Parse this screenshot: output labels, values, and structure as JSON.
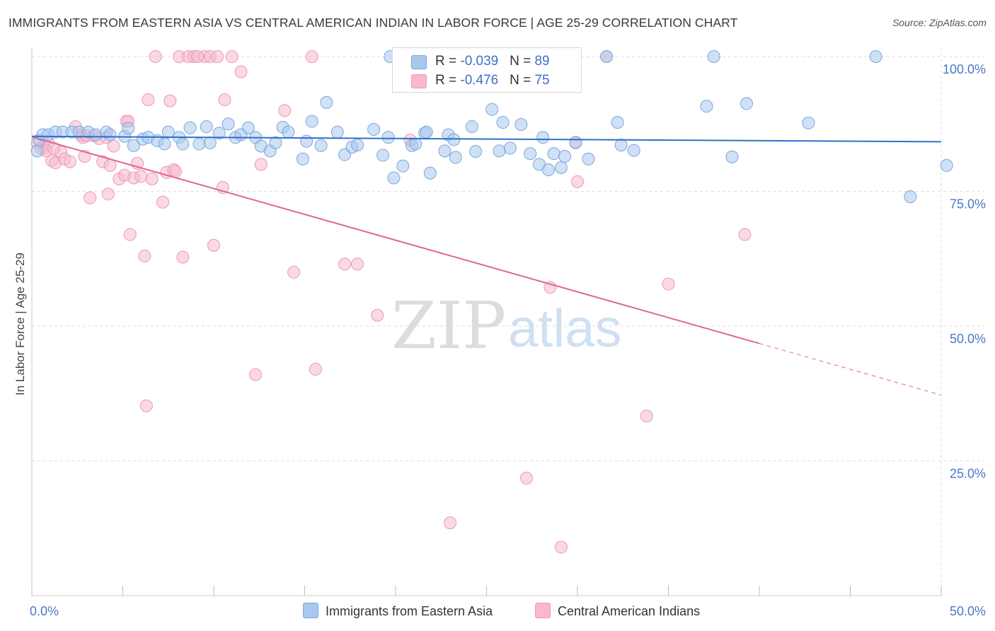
{
  "title": "IMMIGRANTS FROM EASTERN ASIA VS CENTRAL AMERICAN INDIAN IN LABOR FORCE | AGE 25-29 CORRELATION CHART",
  "source": "Source: ZipAtlas.com",
  "watermark": {
    "zip": "ZIP",
    "atlas": "atlas"
  },
  "colors": {
    "blue_fill": "#a9c8ee",
    "blue_stroke": "#7aa6dd",
    "blue_line": "#2f6fca",
    "pink_fill": "#f6b9cd",
    "pink_stroke": "#ee97b4",
    "pink_line": "#e0668f",
    "tick_text": "#4a78c8",
    "grid": "#dedede"
  },
  "legend": {
    "rows": [
      {
        "r_label": "R = ",
        "r_value": "-0.039",
        "n_label": "N = ",
        "n_value": "89",
        "color": "#a9c8ee"
      },
      {
        "r_label": "R = ",
        "r_value": "-0.476",
        "n_label": "N = ",
        "n_value": "75",
        "color": "#f6b9cd"
      }
    ]
  },
  "bottom_legend": [
    {
      "label": "Immigrants from Eastern Asia",
      "color": "#a9c8ee"
    },
    {
      "label": "Central American Indians",
      "color": "#f6b9cd"
    }
  ],
  "chart_data": {
    "type": "scatter",
    "title": "IMMIGRANTS FROM EASTERN ASIA VS CENTRAL AMERICAN INDIAN IN LABOR FORCE | AGE 25-29 CORRELATION CHART",
    "xlabel": "",
    "ylabel": "In Labor Force | Age 25-29",
    "xlim": [
      0,
      50
    ],
    "ylim": [
      0,
      105
    ],
    "x_tick_labels": [
      "0.0%",
      "50.0%"
    ],
    "y_ticks": [
      25,
      50,
      75,
      100
    ],
    "y_tick_labels": [
      "25.0%",
      "50.0%",
      "75.0%",
      "100.0%"
    ],
    "grid": true,
    "series": [
      {
        "name": "Immigrants from Eastern Asia",
        "R": -0.039,
        "N": 89,
        "trend": {
          "x0": 0,
          "y0": 85.2,
          "x1": 50,
          "y1": 84.2,
          "solid_to": 50
        },
        "points": [
          [
            0.3,
            82.5
          ],
          [
            0.4,
            84.5
          ],
          [
            0.6,
            85.5
          ],
          [
            0.9,
            85.5
          ],
          [
            1.3,
            86
          ],
          [
            1.7,
            86
          ],
          [
            2.2,
            86
          ],
          [
            2.6,
            86
          ],
          [
            3.1,
            86
          ],
          [
            3.5,
            85.5
          ],
          [
            4.1,
            86
          ],
          [
            4.3,
            85.5
          ],
          [
            5.1,
            85.2
          ],
          [
            5.3,
            86.7
          ],
          [
            5.6,
            83.5
          ],
          [
            6.1,
            84.7
          ],
          [
            6.4,
            85
          ],
          [
            6.9,
            84.4
          ],
          [
            7.3,
            83.8
          ],
          [
            7.5,
            86
          ],
          [
            8.1,
            85
          ],
          [
            8.3,
            83.8
          ],
          [
            8.7,
            86.8
          ],
          [
            9.2,
            83.8
          ],
          [
            9.6,
            87
          ],
          [
            9.8,
            84
          ],
          [
            10.3,
            85.8
          ],
          [
            10.8,
            87.5
          ],
          [
            11.2,
            85
          ],
          [
            11.5,
            85.5
          ],
          [
            11.9,
            86.8
          ],
          [
            12.3,
            85
          ],
          [
            12.6,
            83.4
          ],
          [
            13.1,
            82.5
          ],
          [
            13.4,
            84
          ],
          [
            13.8,
            86.9
          ],
          [
            14.1,
            86
          ],
          [
            14.9,
            81
          ],
          [
            15.1,
            84.3
          ],
          [
            15.4,
            88
          ],
          [
            15.9,
            83.5
          ],
          [
            16.2,
            91.5
          ],
          [
            16.8,
            86
          ],
          [
            17.2,
            81.8
          ],
          [
            17.6,
            83.2
          ],
          [
            17.9,
            83.6
          ],
          [
            18.8,
            86.5
          ],
          [
            19.3,
            81.7
          ],
          [
            19.6,
            85
          ],
          [
            19.9,
            77.5
          ],
          [
            20.4,
            79.7
          ],
          [
            20.9,
            83.5
          ],
          [
            21.1,
            83.8
          ],
          [
            21.6,
            85.8
          ],
          [
            21.7,
            86
          ],
          [
            21.9,
            78.4
          ],
          [
            22.7,
            82.5
          ],
          [
            22.9,
            85.5
          ],
          [
            23.2,
            84.6
          ],
          [
            23.3,
            81.3
          ],
          [
            24.2,
            87
          ],
          [
            24.4,
            82.4
          ],
          [
            25.3,
            90.2
          ],
          [
            25.7,
            82.5
          ],
          [
            25.9,
            87.8
          ],
          [
            26.3,
            83
          ],
          [
            26.9,
            87.4
          ],
          [
            27.4,
            82
          ],
          [
            27.9,
            80
          ],
          [
            28.1,
            85
          ],
          [
            28.4,
            79
          ],
          [
            28.7,
            82
          ],
          [
            29.1,
            79.4
          ],
          [
            29.3,
            81.5
          ],
          [
            29.9,
            84.1
          ],
          [
            30.6,
            81
          ],
          [
            31.6,
            100
          ],
          [
            32.2,
            87.8
          ],
          [
            32.4,
            83.6
          ],
          [
            33.1,
            82.6
          ],
          [
            37.1,
            90.8
          ],
          [
            37.5,
            100
          ],
          [
            38.5,
            81.4
          ],
          [
            39.3,
            91.3
          ],
          [
            42.7,
            87.7
          ],
          [
            46.4,
            100
          ],
          [
            48.3,
            74
          ],
          [
            50.3,
            79.8
          ],
          [
            19.7,
            100
          ]
        ]
      },
      {
        "name": "Central American Indians",
        "R": -0.476,
        "N": 75,
        "trend": {
          "x0": 0,
          "y0": 85.1,
          "x1": 50,
          "y1": 37.2,
          "solid_to": 40
        },
        "points": [
          [
            0.3,
            84
          ],
          [
            0.5,
            83
          ],
          [
            0.7,
            83
          ],
          [
            0.9,
            84
          ],
          [
            1.1,
            80.7
          ],
          [
            1.3,
            80.3
          ],
          [
            1.6,
            82.3
          ],
          [
            1.8,
            81
          ],
          [
            2.1,
            80.5
          ],
          [
            2.4,
            87
          ],
          [
            2.7,
            85.4
          ],
          [
            2.9,
            81.5
          ],
          [
            3.2,
            73.8
          ],
          [
            3.4,
            85.3
          ],
          [
            3.7,
            84.8
          ],
          [
            3.9,
            80.5
          ],
          [
            4.2,
            74.5
          ],
          [
            4.3,
            79.8
          ],
          [
            4.5,
            83.4
          ],
          [
            4.8,
            77.3
          ],
          [
            5.1,
            78
          ],
          [
            5.2,
            88
          ],
          [
            5.4,
            67
          ],
          [
            5.6,
            77.5
          ],
          [
            5.8,
            80.2
          ],
          [
            6,
            77.8
          ],
          [
            6.2,
            63
          ],
          [
            6.3,
            35.2
          ],
          [
            6.4,
            92
          ],
          [
            6.6,
            77.3
          ],
          [
            6.8,
            100
          ],
          [
            7.2,
            73
          ],
          [
            7.4,
            78.5
          ],
          [
            7.6,
            91.8
          ],
          [
            7.8,
            79
          ],
          [
            8.1,
            100
          ],
          [
            8.3,
            62.8
          ],
          [
            8.6,
            100
          ],
          [
            8.9,
            100
          ],
          [
            9.5,
            100
          ],
          [
            9.8,
            100
          ],
          [
            10,
            65
          ],
          [
            10.5,
            75.7
          ],
          [
            10.6,
            92
          ],
          [
            11.5,
            97.2
          ],
          [
            12.3,
            41
          ],
          [
            12.6,
            80
          ],
          [
            13.9,
            90
          ],
          [
            14.4,
            60
          ],
          [
            15.4,
            100
          ],
          [
            15.6,
            42
          ],
          [
            17.2,
            61.5
          ],
          [
            17.9,
            61.5
          ],
          [
            19,
            52
          ],
          [
            20.8,
            84.5
          ],
          [
            23,
            13.5
          ],
          [
            27.2,
            21.8
          ],
          [
            28.5,
            57.2
          ],
          [
            29.1,
            9
          ],
          [
            29.9,
            84
          ],
          [
            30,
            76.8
          ],
          [
            31.6,
            100
          ],
          [
            33.8,
            33.3
          ],
          [
            35,
            57.8
          ],
          [
            39.2,
            67
          ],
          [
            2.8,
            85
          ],
          [
            4.1,
            85
          ],
          [
            5.3,
            88
          ],
          [
            0.8,
            82.5
          ],
          [
            3.0,
            85.3
          ],
          [
            1.2,
            83
          ],
          [
            7.9,
            78.7
          ],
          [
            9.1,
            100
          ],
          [
            10.2,
            100
          ],
          [
            11.0,
            100
          ]
        ]
      }
    ]
  }
}
